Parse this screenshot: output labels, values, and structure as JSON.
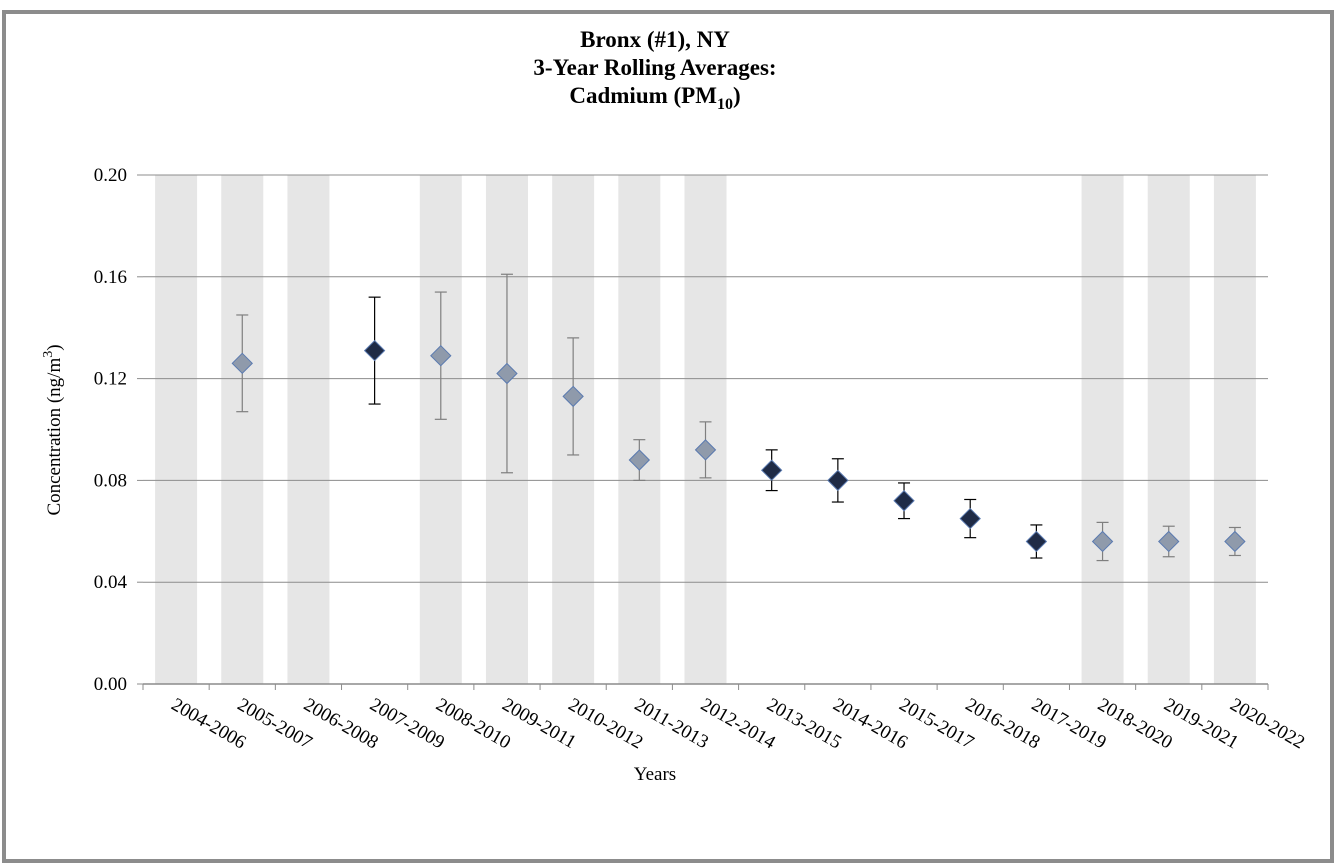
{
  "chart_data": {
    "type": "scatter",
    "title": [
      "Bronx (#1), NY",
      "3-Year Rolling Averages:"
    ],
    "title_line3": [
      "Cadmium (PM",
      "10",
      ")"
    ],
    "ylabel": [
      "Concentration (ng/m",
      "3",
      ")"
    ],
    "xlabel": "Years",
    "categories": [
      "2004-2006",
      "2005-2007",
      "2006-2008",
      "2007-2009",
      "2008-2010",
      "2009-2011",
      "2010-2012",
      "2011-2013",
      "2012-2014",
      "2013-2015",
      "2014-2016",
      "2015-2017",
      "2016-2018",
      "2017-2019",
      "2018-2020",
      "2019-2021",
      "2020-2022"
    ],
    "values": [
      null,
      0.126,
      null,
      0.131,
      0.129,
      0.122,
      0.113,
      0.088,
      0.092,
      0.084,
      0.08,
      0.072,
      0.065,
      0.056,
      0.056,
      0.056,
      0.056
    ],
    "errors": [
      null,
      0.019,
      null,
      0.021,
      0.025,
      0.039,
      0.023,
      0.008,
      0.011,
      0.008,
      0.0085,
      0.007,
      0.0075,
      0.0065,
      0.0075,
      0.006,
      0.0055
    ],
    "point_colors": [
      null,
      "#8f9aab",
      null,
      "#1f2b46",
      "#8f9aab",
      "#8f9aab",
      "#8f9aab",
      "#8f9aab",
      "#8f9aab",
      "#1f2b46",
      "#1f2b46",
      "#1f2b46",
      "#1f2b46",
      "#1f2b46",
      "#8f9aab",
      "#8f9aab",
      "#8f9aab"
    ],
    "shading": {
      "color": "#e6e6e6",
      "values": [
        0.2,
        0.2,
        0.2,
        null,
        0.2,
        0.2,
        0.2,
        0.2,
        0.2,
        null,
        null,
        null,
        null,
        null,
        0.2,
        0.2,
        0.2
      ]
    },
    "ylim": [
      0,
      0.2
    ],
    "yticks": [
      {
        "value": 0,
        "label": "0.00"
      },
      {
        "value": 0.04,
        "label": "0.04"
      },
      {
        "value": 0.08,
        "label": "0.08"
      },
      {
        "value": 0.12,
        "label": "0.12"
      },
      {
        "value": 0.16,
        "label": "0.16"
      },
      {
        "value": 0.2,
        "label": "0.20"
      }
    ],
    "grid": true
  }
}
